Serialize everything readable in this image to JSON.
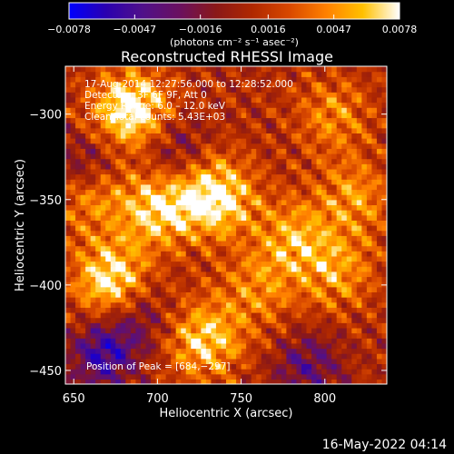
{
  "chart_data": {
    "type": "heatmap",
    "title": "Reconstructed RHESSI Image",
    "xlabel": "Heliocentric X (arcsec)",
    "ylabel": "Heliocentric Y (arcsec)",
    "xlim": [
      645,
      837
    ],
    "ylim": [
      -458,
      -272
    ],
    "x_ticks": [
      650,
      700,
      750,
      800
    ],
    "y_ticks": [
      -300,
      -350,
      -400,
      -450
    ],
    "x_tick_labels": [
      "650",
      "700",
      "750",
      "800"
    ],
    "y_tick_labels": [
      "−300",
      "−350",
      "−400",
      "−450"
    ],
    "colorbar": {
      "range": [
        -0.0078,
        0.0078
      ],
      "ticks": [
        -0.0078,
        -0.0047,
        -0.0016,
        0.0016,
        0.0047,
        0.0078
      ],
      "tick_labels": [
        "−0.0078",
        "−0.0047",
        "−0.0016",
        "0.0016",
        "0.0047",
        "0.0078"
      ],
      "unit_label": "(photons cm⁻² s⁻¹ asec⁻²)",
      "colormap": [
        "#0000ff",
        "#2a00b0",
        "#50108a",
        "#6a1060",
        "#8a1818",
        "#b02800",
        "#d84800",
        "#ff8000",
        "#ffc000",
        "#ffffff"
      ]
    },
    "annotations": {
      "time_range": "17‑Aug‑2014 12:27:56.000 to 12:28:52.000",
      "detectors": "Detectors: 3F 6F 9F, Att 0",
      "energy": "Energy Range: 6.0 – 12.0 keV",
      "clean": "Clean    Total counts: 5.43E+03",
      "peak": "Position of Peak = [684,−297]"
    },
    "hotspots": [
      {
        "x": 735,
        "y": -348,
        "v": 0.0075
      },
      {
        "x": 700,
        "y": -355,
        "v": 0.006
      },
      {
        "x": 672,
        "y": -397,
        "v": 0.0068
      },
      {
        "x": 684,
        "y": -297,
        "v": 0.0078
      },
      {
        "x": 728,
        "y": -432,
        "v": 0.006
      },
      {
        "x": 782,
        "y": -372,
        "v": 0.0045
      },
      {
        "x": 760,
        "y": -402,
        "v": 0.0035
      },
      {
        "x": 808,
        "y": -392,
        "v": 0.004
      },
      {
        "x": 818,
        "y": -348,
        "v": 0.004
      },
      {
        "x": 805,
        "y": -300,
        "v": 0.0035
      },
      {
        "x": 660,
        "y": -348,
        "v": 0.004
      }
    ],
    "coldspots": [
      {
        "x": 668,
        "y": -440,
        "v": -0.006
      },
      {
        "x": 658,
        "y": -330,
        "v": -0.0035
      },
      {
        "x": 790,
        "y": -447,
        "v": -0.004
      },
      {
        "x": 690,
        "y": -418,
        "v": -0.003
      },
      {
        "x": 710,
        "y": -322,
        "v": -0.003
      }
    ]
  },
  "footer": {
    "timestamp": "16‑May‑2022 04:14"
  }
}
